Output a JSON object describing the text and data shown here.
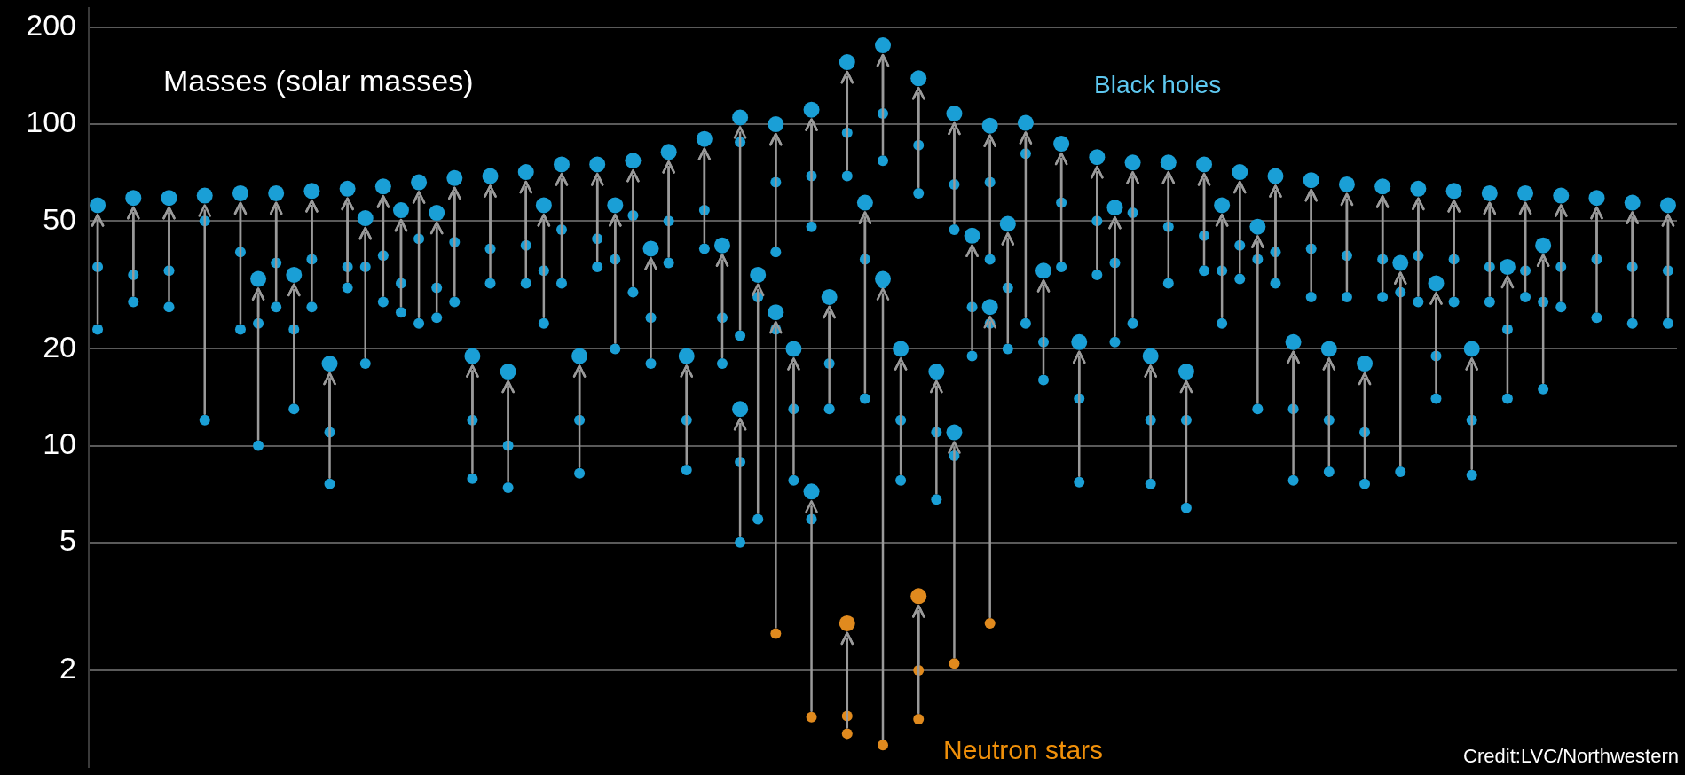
{
  "chart_data": {
    "type": "scatter",
    "ylabel": "Masses (solar masses)",
    "annotations": [
      "Black holes",
      "Neutron stars",
      "Credit:LVC/Northwestern"
    ],
    "categories": [
      null,
      null,
      null,
      null,
      null,
      null,
      null,
      null,
      null,
      null,
      null,
      null,
      null,
      null,
      null,
      null,
      null,
      null,
      null,
      null,
      null,
      null,
      null,
      null,
      null,
      null,
      null,
      null,
      null,
      null,
      null,
      null,
      null,
      null,
      null,
      null,
      null,
      null,
      null,
      null,
      null,
      null,
      null,
      null,
      null,
      null,
      null,
      null,
      null,
      null,
      null,
      null,
      null,
      null,
      null,
      null,
      null,
      null,
      null,
      null,
      null,
      null,
      null,
      null,
      null,
      null,
      null,
      null,
      null,
      null,
      null,
      null,
      null,
      null,
      null,
      null,
      null,
      null,
      null,
      null,
      null,
      null,
      null,
      null,
      null,
      null,
      null,
      null,
      null
    ],
    "series": [
      {
        "color": "#1a9fd6",
        "values": [
          56,
          null,
          59,
          null,
          59,
          null,
          60,
          null,
          61,
          33,
          61,
          34,
          62,
          18,
          63,
          51,
          64,
          54,
          66,
          53,
          68,
          19,
          69,
          17,
          71,
          56,
          75,
          19,
          75,
          56,
          77,
          41,
          82,
          19,
          90,
          42,
          105,
          34,
          100,
          20,
          111,
          29,
          156,
          57,
          176,
          20,
          139,
          17,
          108,
          45,
          99,
          49,
          101,
          35,
          87,
          21,
          79,
          55,
          76,
          19,
          76,
          17,
          75,
          56,
          71,
          48,
          69,
          21,
          67,
          20,
          65,
          18,
          64,
          37,
          63,
          32,
          62,
          20,
          61,
          36,
          61,
          42,
          60,
          null,
          59,
          null,
          57,
          null,
          56
        ]
      },
      {
        "color": "#1a9fd6",
        "values": [
          36,
          null,
          34,
          null,
          35,
          null,
          50,
          null,
          40,
          24,
          37,
          23,
          38,
          11,
          36,
          36,
          39,
          32,
          44,
          31,
          43,
          12,
          41,
          10,
          42,
          35,
          47,
          12,
          44,
          38,
          52,
          25,
          50,
          12,
          54,
          25,
          88,
          29,
          66,
          13,
          69,
          18,
          94,
          38,
          108,
          12,
          86,
          11,
          65,
          27,
          66,
          31,
          81,
          21,
          57,
          14,
          50,
          37,
          53,
          12,
          48,
          12,
          45,
          35,
          42,
          38,
          40,
          13,
          41,
          12,
          39,
          11,
          38,
          30,
          39,
          19,
          38,
          12,
          36,
          23,
          35,
          28,
          36,
          null,
          38,
          null,
          36,
          null,
          35
        ]
      },
      {
        "color": "#1a9fd6",
        "values": [
          23,
          null,
          28,
          null,
          27,
          null,
          12,
          null,
          23,
          10,
          27,
          13,
          27,
          7.6,
          31,
          18,
          28,
          26,
          24,
          25,
          28,
          7.9,
          32,
          7.4,
          32,
          24,
          32,
          8.2,
          36,
          20,
          30,
          18,
          37,
          8.4,
          41,
          18,
          22,
          5.9,
          40,
          7.8,
          48,
          13,
          69,
          14,
          77,
          7.8,
          61,
          6.8,
          47,
          19,
          38,
          20,
          24,
          16,
          36,
          7.7,
          34,
          21,
          24,
          7.6,
          32,
          6.4,
          35,
          24,
          33,
          13,
          32,
          7.8,
          29,
          8.3,
          29,
          7.6,
          29,
          8.3,
          28,
          14,
          28,
          8.1,
          28,
          14,
          29,
          15,
          27,
          null,
          25,
          null,
          24,
          null,
          24
        ]
      },
      {
        "color": "#1a9fd6",
        "values": [
          null,
          null,
          null,
          null,
          null,
          null,
          null,
          null,
          null,
          null,
          null,
          null,
          null,
          null,
          null,
          null,
          null,
          null,
          null,
          null,
          null,
          null,
          null,
          null,
          null,
          null,
          null,
          null,
          null,
          null,
          null,
          null,
          null,
          null,
          null,
          null,
          13,
          null,
          26,
          null,
          7.2,
          null,
          2.8,
          null,
          33,
          null,
          3.4,
          null,
          11,
          null,
          27,
          null,
          null,
          null,
          null,
          null,
          null,
          null,
          null,
          null,
          null,
          null,
          null,
          null,
          null,
          null,
          null,
          null,
          null,
          null,
          null,
          null,
          null,
          null,
          null,
          null,
          null,
          null,
          null,
          null,
          null,
          null,
          null,
          null,
          null,
          null,
          null,
          null,
          null
        ],
        "colors": [
          null,
          null,
          null,
          null,
          null,
          null,
          null,
          null,
          null,
          null,
          null,
          null,
          null,
          null,
          null,
          null,
          null,
          null,
          null,
          null,
          null,
          null,
          null,
          null,
          null,
          null,
          null,
          null,
          null,
          null,
          null,
          null,
          null,
          null,
          null,
          null,
          "#1a9fd6",
          null,
          "#1a9fd6",
          null,
          "#1a9fd6",
          null,
          "#e08a1e",
          null,
          "#1a9fd6",
          null,
          "#e08a1e",
          null,
          "#1a9fd6",
          null,
          "#1a9fd6",
          null,
          null,
          null,
          null,
          null,
          null,
          null,
          null,
          null,
          null,
          null,
          null,
          null,
          null,
          null,
          null,
          null,
          null,
          null,
          null,
          null,
          null,
          null,
          null,
          null,
          null,
          null,
          null,
          null,
          null,
          null,
          null,
          null,
          null,
          null,
          null,
          null,
          null
        ]
      },
      {
        "color": "#1a9fd6",
        "values": [
          null,
          null,
          null,
          null,
          null,
          null,
          null,
          null,
          null,
          null,
          null,
          null,
          null,
          null,
          null,
          null,
          null,
          null,
          null,
          null,
          null,
          null,
          null,
          null,
          null,
          null,
          null,
          null,
          null,
          null,
          null,
          null,
          null,
          null,
          null,
          null,
          8.9,
          null,
          23,
          null,
          5.9,
          null,
          1.44,
          null,
          32,
          null,
          2.0,
          null,
          9.3,
          null,
          24,
          null,
          null,
          null,
          null,
          null,
          null,
          null,
          null,
          null,
          null,
          null,
          null,
          null,
          null,
          null,
          null,
          null,
          null,
          null,
          null,
          null,
          null,
          null,
          null,
          null,
          null,
          null,
          null,
          null,
          null,
          null,
          null,
          null,
          null,
          null,
          null,
          null,
          null
        ],
        "colors": [
          null,
          null,
          null,
          null,
          null,
          null,
          null,
          null,
          null,
          null,
          null,
          null,
          null,
          null,
          null,
          null,
          null,
          null,
          null,
          null,
          null,
          null,
          null,
          null,
          null,
          null,
          null,
          null,
          null,
          null,
          null,
          null,
          null,
          null,
          null,
          null,
          "#1a9fd6",
          null,
          "#1a9fd6",
          null,
          "#1a9fd6",
          null,
          "#e08a1e",
          null,
          "#1a9fd6",
          null,
          "#e08a1e",
          null,
          "#1a9fd6",
          null,
          "#1a9fd6",
          null,
          null,
          null,
          null,
          null,
          null,
          null,
          null,
          null,
          null,
          null,
          null,
          null,
          null,
          null,
          null,
          null,
          null,
          null,
          null,
          null,
          null,
          null,
          null,
          null,
          null,
          null,
          null,
          null,
          null,
          null,
          null,
          null,
          null,
          null,
          null,
          null,
          null
        ]
      },
      {
        "color": "#e08a1e",
        "values": [
          null,
          null,
          null,
          null,
          null,
          null,
          null,
          null,
          null,
          null,
          null,
          null,
          null,
          null,
          null,
          null,
          null,
          null,
          null,
          null,
          null,
          null,
          null,
          null,
          null,
          null,
          null,
          null,
          null,
          null,
          null,
          null,
          null,
          null,
          null,
          null,
          5.0,
          null,
          2.6,
          null,
          1.43,
          null,
          1.27,
          null,
          1.17,
          null,
          1.41,
          null,
          2.1,
          null,
          2.8,
          null,
          null,
          null,
          null,
          null,
          null,
          null,
          null,
          null,
          null,
          null,
          null,
          null,
          null,
          null,
          null,
          null,
          null,
          null,
          null,
          null,
          null,
          null,
          null,
          null,
          null,
          null,
          null,
          null,
          null,
          null,
          null,
          null,
          null,
          null,
          null,
          null,
          null
        ],
        "colors": [
          null,
          null,
          null,
          null,
          null,
          null,
          null,
          null,
          null,
          null,
          null,
          null,
          null,
          null,
          null,
          null,
          null,
          null,
          null,
          null,
          null,
          null,
          null,
          null,
          null,
          null,
          null,
          null,
          null,
          null,
          null,
          null,
          null,
          null,
          null,
          null,
          "#1a9fd6",
          null,
          "#e08a1e",
          null,
          "#e08a1e",
          null,
          "#e08a1e",
          null,
          "#e08a1e",
          null,
          "#e08a1e",
          null,
          "#e08a1e",
          null,
          "#e08a1e",
          null,
          null,
          null,
          null,
          null,
          null,
          null,
          null,
          null,
          null,
          null,
          null,
          null,
          null,
          null,
          null,
          null,
          null,
          null,
          null,
          null,
          null,
          null,
          null,
          null,
          null,
          null,
          null,
          null,
          null,
          null,
          null,
          null,
          null,
          null,
          null,
          null,
          null
        ]
      }
    ],
    "log": "y",
    "ylim": [
      1,
      230
    ],
    "yticks": [
      2,
      5,
      10,
      20,
      50,
      100,
      200
    ],
    "grid": "y",
    "tick_labels": "y",
    "marker": "circle"
  }
}
